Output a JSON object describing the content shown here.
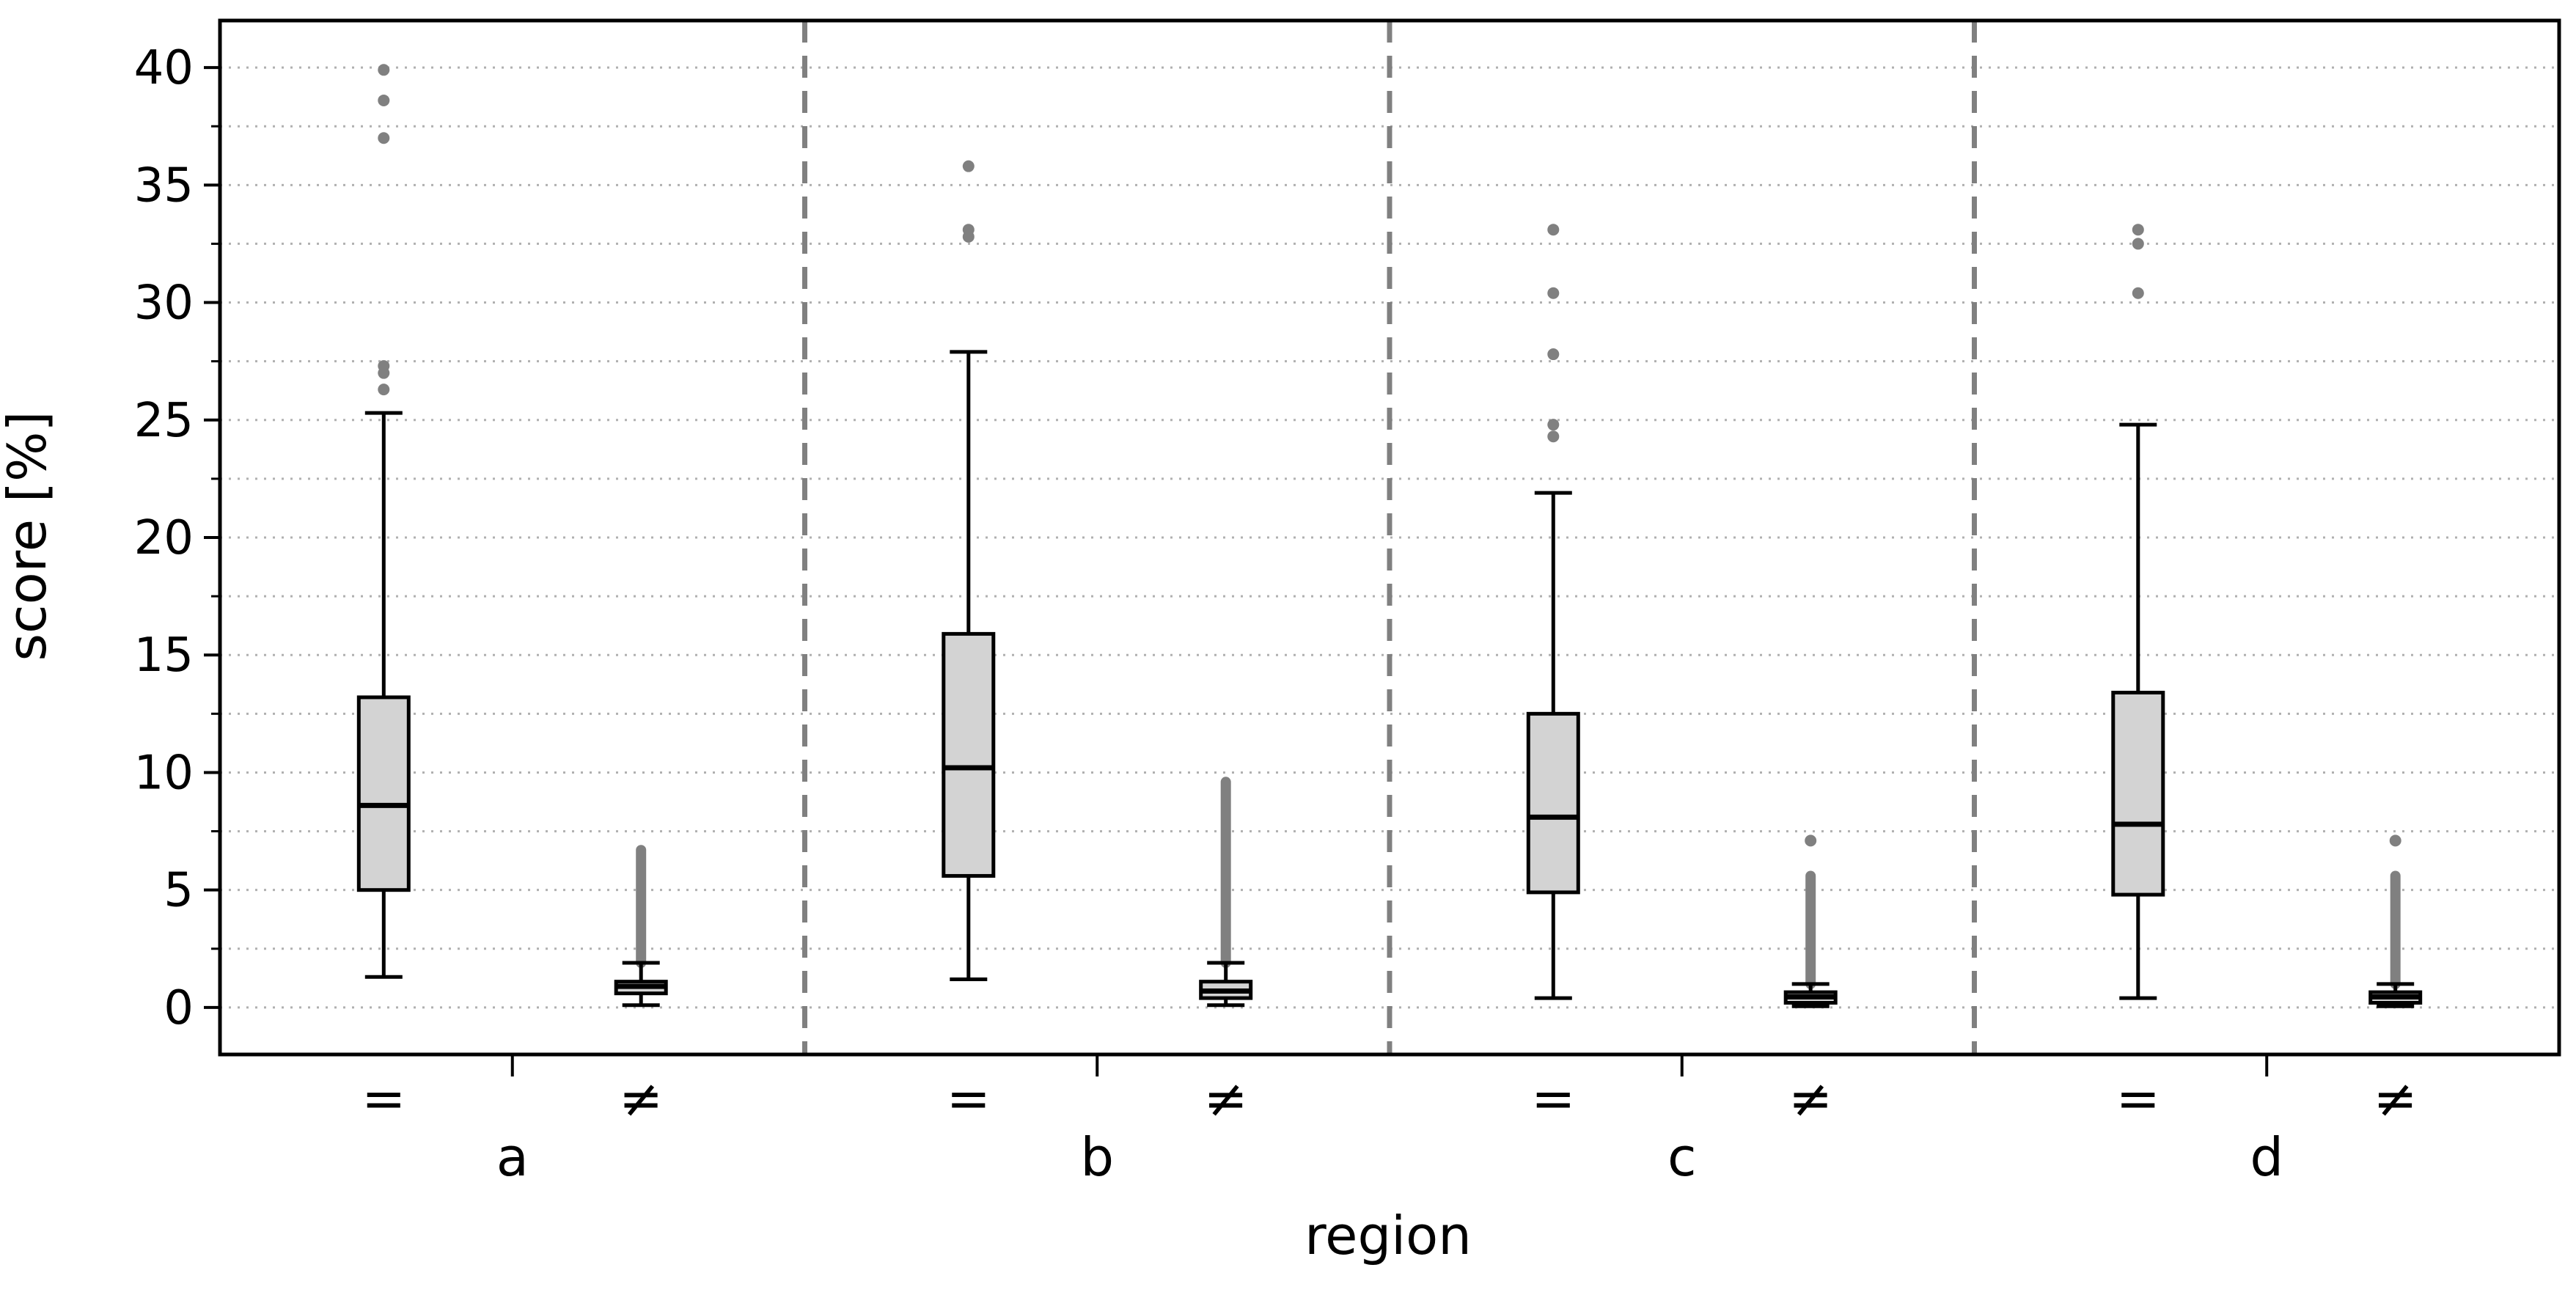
{
  "chart_data": {
    "type": "box",
    "xlabel": "region",
    "ylabel": "score [%]",
    "ylim": [
      -2,
      42
    ],
    "yticks": [
      0,
      5,
      10,
      15,
      20,
      25,
      30,
      35,
      40
    ],
    "yticks_minor_step": 2.5,
    "grid": "horizontal dotted (major and minor)",
    "groups": [
      "a",
      "b",
      "c",
      "d"
    ],
    "subcategories": [
      "=",
      "≠"
    ],
    "group_separator": "dashed vertical line",
    "boxes": [
      {
        "group": "a",
        "sub": "=",
        "whislo": 1.3,
        "q1": 5.0,
        "median": 8.6,
        "q3": 13.2,
        "whishi": 25.3,
        "fliers": [
          26.3,
          27.0,
          27.3,
          37.0,
          38.6,
          39.9
        ]
      },
      {
        "group": "a",
        "sub": "≠",
        "whislo": 0.1,
        "q1": 0.6,
        "median": 0.9,
        "q3": 1.1,
        "whishi": 1.9,
        "fliers_range": [
          1.9,
          6.7
        ]
      },
      {
        "group": "b",
        "sub": "=",
        "whislo": 1.2,
        "q1": 5.6,
        "median": 10.2,
        "q3": 15.9,
        "whishi": 27.9,
        "fliers": [
          32.8,
          33.1,
          35.8
        ]
      },
      {
        "group": "b",
        "sub": "≠",
        "whislo": 0.1,
        "q1": 0.4,
        "median": 0.7,
        "q3": 1.1,
        "whishi": 1.9,
        "fliers_range": [
          1.9,
          9.6
        ]
      },
      {
        "group": "c",
        "sub": "=",
        "whislo": 0.4,
        "q1": 4.9,
        "median": 8.1,
        "q3": 12.5,
        "whishi": 21.9,
        "fliers": [
          24.3,
          24.8,
          27.8,
          30.4,
          33.1
        ]
      },
      {
        "group": "c",
        "sub": "≠",
        "whislo": 0.05,
        "q1": 0.2,
        "median": 0.45,
        "q3": 0.65,
        "whishi": 1.0,
        "fliers_range": [
          1.0,
          5.6
        ],
        "fliers": [
          7.1
        ]
      },
      {
        "group": "d",
        "sub": "=",
        "whislo": 0.4,
        "q1": 4.8,
        "median": 7.8,
        "q3": 13.4,
        "whishi": 24.8,
        "fliers": [
          30.4,
          32.5,
          33.1
        ]
      },
      {
        "group": "d",
        "sub": "≠",
        "whislo": 0.05,
        "q1": 0.2,
        "median": 0.45,
        "q3": 0.65,
        "whishi": 1.0,
        "fliers_range": [
          1.0,
          5.6
        ],
        "fliers": [
          7.1
        ]
      }
    ],
    "colors": {
      "box_fill": "#d3d3d3",
      "box_edge": "#000000",
      "flier": "#808080",
      "separator": "#808080",
      "grid": "#b0b0b0"
    }
  }
}
